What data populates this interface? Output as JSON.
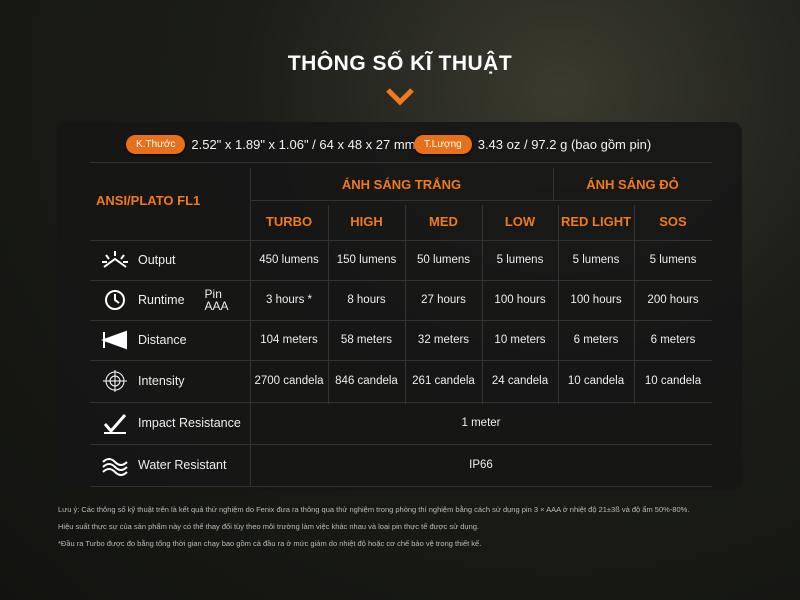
{
  "title": "THÔNG SỐ KĨ THUẬT",
  "accent": "#f07a1e",
  "specs": [
    {
      "label": "K.Thước",
      "value": "2.52\" x 1.89\" x 1.06\" / 64 x 48 x 27 mm"
    },
    {
      "label": "T.Lượng",
      "value": "3.43 oz / 97.2 g (bao gồm pin)"
    }
  ],
  "table": {
    "standard": "ANSI/PLATO FL1",
    "groups": [
      "ÁNH SÁNG TRẮNG",
      "ÁNH SÁNG ĐỎ"
    ],
    "modes": [
      "TURBO",
      "HIGH",
      "MED",
      "LOW",
      "RED LIGHT",
      "SOS"
    ],
    "rows": [
      {
        "label": "Output",
        "icon": "output-icon",
        "values": [
          "450 lumens",
          "150 lumens",
          "50 lumens",
          "5 lumens",
          "5 lumens",
          "5 lumens"
        ]
      },
      {
        "label": "Runtime",
        "sub": "Pin AAA",
        "icon": "clock-icon",
        "values": [
          "3 hours *",
          "8 hours",
          "27 hours",
          "100  hours",
          "100  hours",
          "200 hours"
        ]
      },
      {
        "label": "Distance",
        "icon": "distance-icon",
        "values": [
          "104 meters",
          "58 meters",
          "32 meters",
          "10 meters",
          "6 meters",
          "6 meters"
        ]
      },
      {
        "label": "Intensity",
        "icon": "target-icon",
        "values": [
          "2700 candela",
          "846 candela",
          "261 candela",
          "24 candela",
          "10 candela",
          "10 candela"
        ]
      },
      {
        "label": "Impact Resistance",
        "icon": "impact-icon",
        "value": "1 meter"
      },
      {
        "label": "Water Resistant",
        "icon": "water-icon",
        "value": "IP66"
      }
    ]
  },
  "notes": [
    "Lưu ý: Các thông số kỹ thuật trên là kết quả thử nghiệm do Fenix đưa ra thông qua thử nghiệm trong phòng thí nghiệm bằng cách sử dụng pin 3 × AAA ở nhiệt độ 21±3ß và độ ẩm 50%-80%.",
    "Hiệu suất thực sự của sản phẩm này có thể thay đổi tùy theo môi trường làm việc khác nhau và loại pin thực tế được sử dụng.",
    "*Đầu ra Turbo được đo bằng tổng thời gian chạy bao gồm cả đầu ra ở mức giảm do nhiệt độ hoặc cơ chế bảo vệ trong thiết kế."
  ]
}
